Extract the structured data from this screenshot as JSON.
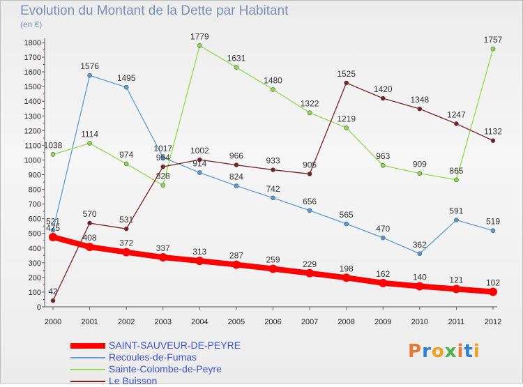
{
  "header": {
    "title": "Evolution du Montant de la Dette par Habitant",
    "subtitle": "(en €)"
  },
  "brand": {
    "text": "Proxiti"
  },
  "chart_data": {
    "type": "line",
    "title": "Evolution du Montant de la Dette par Habitant",
    "ylabel": "(en €)",
    "xlabel": "",
    "categories": [
      "2000",
      "2001",
      "2002",
      "2003",
      "2004",
      "2005",
      "2006",
      "2007",
      "2008",
      "2009",
      "2010",
      "2011",
      "2012"
    ],
    "ylim": [
      0,
      1800
    ],
    "yticks": [
      0,
      100,
      200,
      300,
      400,
      500,
      600,
      700,
      800,
      900,
      1000,
      1100,
      1200,
      1300,
      1400,
      1500,
      1600,
      1700,
      1800
    ],
    "grid": false,
    "legend_position": "bottom-left",
    "series": [
      {
        "name": "SAINT-SAUVEUR-DE-PEYRE",
        "color": "#ff0000",
        "values": [
          475,
          408,
          372,
          337,
          313,
          287,
          259,
          229,
          198,
          162,
          140,
          121,
          102
        ]
      },
      {
        "name": "Recoules-de-Fumas",
        "color": "#5b9bd5",
        "values": [
          521,
          1576,
          1495,
          1017,
          914,
          824,
          742,
          656,
          565,
          470,
          362,
          591,
          519
        ]
      },
      {
        "name": "Sainte-Colombe-de-Peyre",
        "color": "#8fd94f",
        "values": [
          1038,
          1114,
          974,
          828,
          1779,
          1631,
          1480,
          1322,
          1219,
          963,
          909,
          865,
          1757
        ]
      },
      {
        "name": "Le Buisson",
        "color": "#7b1f24",
        "values": [
          42,
          570,
          531,
          954,
          1002,
          966,
          933,
          905,
          1525,
          1420,
          1348,
          1247,
          1132
        ]
      }
    ]
  }
}
